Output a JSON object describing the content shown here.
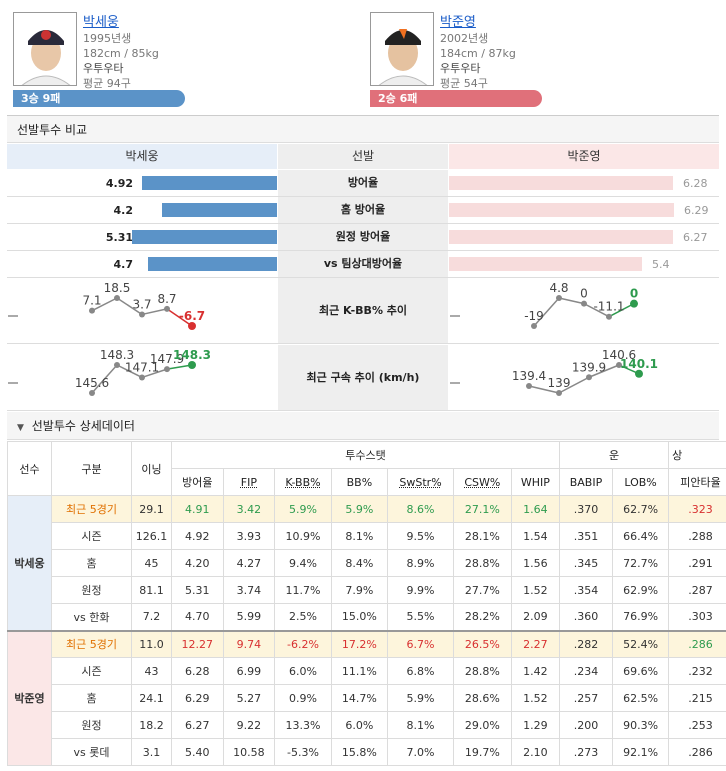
{
  "pitchers": [
    {
      "name": "박세웅",
      "born": "1995년생",
      "body": "182cm / 85kg",
      "hand": "우투우타",
      "avg": "평균 94구",
      "record": "3승 9패",
      "color": "#5b93c8"
    },
    {
      "name": "박준영",
      "born": "2002년생",
      "body": "184cm / 87kg",
      "hand": "우투우타",
      "avg": "평균 54구",
      "record": "2승 6패",
      "color": "#e0707a"
    }
  ],
  "compare": {
    "title": "선발투수 비교",
    "left_name": "박세웅",
    "mid": "선발",
    "right_name": "박준영",
    "rows": [
      {
        "label": "방어율",
        "left": "4.92",
        "right": "6.28"
      },
      {
        "label": "홈 방어율",
        "left": "4.2",
        "right": "6.29"
      },
      {
        "label": "원정 방어율",
        "left": "5.31",
        "right": "6.27"
      },
      {
        "label": "vs 팀상대방어율",
        "left": "4.7",
        "right": "5.4"
      }
    ],
    "kbb": {
      "label": "최근 K-BB% 추이",
      "left": [
        "7.1",
        "18.5",
        "3.7",
        "8.7",
        "-6.7"
      ],
      "right": [
        "-19",
        "4.8",
        "0",
        "-11.1",
        "0"
      ]
    },
    "velo": {
      "label": "최근 구속 추이 (km/h)",
      "left": [
        "145.6",
        "148.3",
        "147.1",
        "147.9",
        "148.3"
      ],
      "right": [
        "139.4",
        "139",
        "139.9",
        "140.6",
        "140.1"
      ]
    }
  },
  "detail": {
    "title": "선발투수 상세데이터",
    "h1": [
      "선수",
      "구분",
      "이닝",
      "투수스탯",
      "운",
      "상"
    ],
    "h2": [
      "방어율",
      "FIP",
      "K-BB%",
      "BB%",
      "SwStr%",
      "CSW%",
      "WHIP",
      "BABIP",
      "LOB%",
      "피안타율"
    ],
    "groups": [
      {
        "player": "박세웅",
        "rows": [
          {
            "label": "최근 5경기",
            "vals": [
              "29.1",
              "4.91",
              "3.42",
              "5.9%",
              "5.9%",
              "8.6%",
              "27.1%",
              "1.64",
              ".370",
              "62.7%",
              ".323"
            ]
          },
          {
            "label": "시즌",
            "vals": [
              "126.1",
              "4.92",
              "3.93",
              "10.9%",
              "8.1%",
              "9.5%",
              "28.1%",
              "1.54",
              ".351",
              "66.4%",
              ".288"
            ]
          },
          {
            "label": "홈",
            "vals": [
              "45",
              "4.20",
              "4.27",
              "9.4%",
              "8.4%",
              "8.9%",
              "28.8%",
              "1.56",
              ".345",
              "72.7%",
              ".291"
            ]
          },
          {
            "label": "원정",
            "vals": [
              "81.1",
              "5.31",
              "3.74",
              "11.7%",
              "7.9%",
              "9.9%",
              "27.7%",
              "1.52",
              ".354",
              "62.9%",
              ".287"
            ]
          },
          {
            "label": "vs 한화",
            "vals": [
              "7.2",
              "4.70",
              "5.99",
              "2.5%",
              "15.0%",
              "5.5%",
              "28.2%",
              "2.09",
              ".360",
              "76.9%",
              ".303"
            ]
          }
        ]
      },
      {
        "player": "박준영",
        "rows": [
          {
            "label": "최근 5경기",
            "vals": [
              "11.0",
              "12.27",
              "9.74",
              "-6.2%",
              "17.2%",
              "6.7%",
              "26.5%",
              "2.27",
              ".282",
              "52.4%",
              ".286"
            ]
          },
          {
            "label": "시즌",
            "vals": [
              "43",
              "6.28",
              "6.99",
              "6.0%",
              "11.1%",
              "6.8%",
              "28.8%",
              "1.42",
              ".234",
              "69.6%",
              ".232"
            ]
          },
          {
            "label": "홈",
            "vals": [
              "24.1",
              "6.29",
              "5.27",
              "0.9%",
              "14.7%",
              "5.9%",
              "28.6%",
              "1.52",
              ".257",
              "62.5%",
              ".215"
            ]
          },
          {
            "label": "원정",
            "vals": [
              "18.2",
              "6.27",
              "9.22",
              "13.3%",
              "6.0%",
              "8.1%",
              "29.0%",
              "1.29",
              ".200",
              "90.3%",
              ".253"
            ]
          },
          {
            "label": "vs 롯데",
            "vals": [
              "3.1",
              "5.40",
              "10.58",
              "-5.3%",
              "15.8%",
              "7.0%",
              "19.7%",
              "2.10",
              ".273",
              "92.1%",
              ".286"
            ]
          }
        ]
      }
    ]
  }
}
